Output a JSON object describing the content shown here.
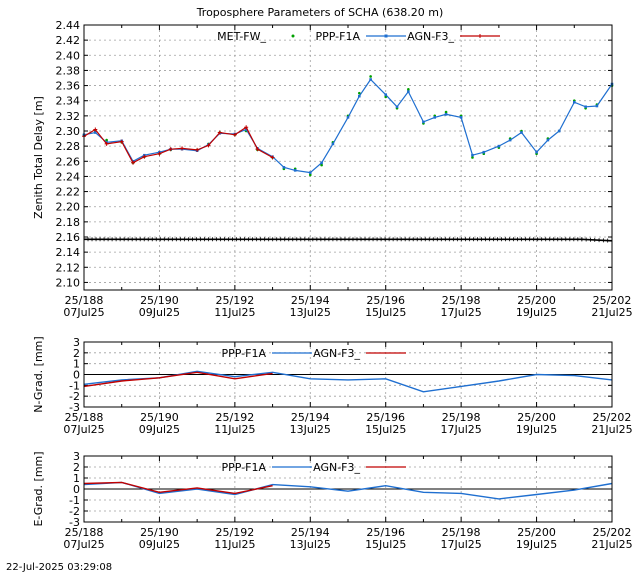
{
  "chart_data": [
    {
      "type": "line",
      "title": "Troposphere Parameters of SCHA (638.20 m)",
      "xlabel": "",
      "ylabel": "Zenith Total Delay [m]",
      "x_ticks": [
        "25/188\n07Jul25",
        "25/190\n09Jul25",
        "25/192\n11Jul25",
        "25/194\n13Jul25",
        "25/196\n15Jul25",
        "25/198\n17Jul25",
        "25/200\n19Jul25",
        "25/202\n21Jul25"
      ],
      "xlim": [
        188,
        202
      ],
      "ylim": [
        2.09,
        2.44
      ],
      "y_ticks": [
        "2.10",
        "2.12",
        "2.14",
        "2.16",
        "2.18",
        "2.20",
        "2.22",
        "2.24",
        "2.26",
        "2.28",
        "2.30",
        "2.32",
        "2.34",
        "2.36",
        "2.38",
        "2.40",
        "2.42",
        "2.44"
      ],
      "grid": true,
      "legend": "top",
      "series": [
        {
          "name": "MET-FW_",
          "color": "#00a000",
          "style": "dots",
          "x": [
            188.0,
            188.3,
            188.6,
            189.0,
            189.3,
            189.6,
            190.0,
            190.3,
            190.6,
            191.0,
            191.3,
            191.6,
            192.0,
            192.3,
            192.6,
            193.0,
            193.3,
            193.6,
            194.0,
            194.3,
            194.6,
            195.0,
            195.3,
            195.6,
            196.0,
            196.3,
            196.6,
            197.0,
            197.3,
            197.6,
            198.0,
            198.3,
            198.6,
            199.0,
            199.3,
            199.6,
            200.0,
            200.3,
            200.6,
            201.0,
            201.3,
            201.6,
            202.0
          ],
          "y": [
            2.295,
            2.3,
            2.288,
            2.285,
            2.258,
            2.266,
            2.27,
            2.275,
            2.276,
            2.275,
            2.283,
            2.298,
            2.295,
            2.3,
            2.275,
            2.265,
            2.25,
            2.25,
            2.242,
            2.255,
            2.285,
            2.32,
            2.35,
            2.372,
            2.345,
            2.33,
            2.355,
            2.31,
            2.32,
            2.325,
            2.32,
            2.265,
            2.27,
            2.278,
            2.29,
            2.3,
            2.27,
            2.29,
            2.3,
            2.34,
            2.33,
            2.335,
            2.36
          ]
        },
        {
          "name": "PPP-F1A",
          "color": "#1f6fd0",
          "style": "line-markers",
          "x": [
            188.0,
            188.3,
            188.6,
            189.0,
            189.3,
            189.6,
            190.0,
            190.3,
            190.6,
            191.0,
            191.3,
            191.6,
            192.0,
            192.3,
            192.6,
            193.0,
            193.3,
            193.6,
            194.0,
            194.3,
            194.6,
            195.0,
            195.3,
            195.6,
            196.0,
            196.3,
            196.6,
            197.0,
            197.3,
            197.6,
            198.0,
            198.3,
            198.6,
            199.0,
            199.3,
            199.6,
            200.0,
            200.3,
            200.6,
            201.0,
            201.3,
            201.6,
            202.0
          ],
          "y": [
            2.295,
            2.298,
            2.285,
            2.287,
            2.26,
            2.268,
            2.272,
            2.276,
            2.276,
            2.274,
            2.282,
            2.297,
            2.296,
            2.302,
            2.277,
            2.266,
            2.252,
            2.248,
            2.245,
            2.258,
            2.283,
            2.318,
            2.346,
            2.368,
            2.348,
            2.332,
            2.352,
            2.312,
            2.318,
            2.322,
            2.318,
            2.268,
            2.272,
            2.28,
            2.288,
            2.298,
            2.272,
            2.288,
            2.3,
            2.338,
            2.332,
            2.333,
            2.362
          ]
        },
        {
          "name": "AGN-F3_",
          "color": "#c00000",
          "style": "line-plus",
          "x": [
            188.0,
            188.3,
            188.6,
            189.0,
            189.3,
            189.6,
            190.0,
            190.3,
            190.6,
            191.0,
            191.3,
            191.6,
            192.0,
            192.3,
            192.6,
            193.0
          ],
          "y": [
            2.293,
            2.302,
            2.283,
            2.286,
            2.258,
            2.266,
            2.27,
            2.276,
            2.277,
            2.275,
            2.281,
            2.298,
            2.295,
            2.305,
            2.276,
            2.265
          ]
        },
        {
          "name": "",
          "color": "#000000",
          "style": "plus-baseline",
          "x": [
            188,
            201.2,
            202
          ],
          "y": [
            2.157,
            2.157,
            2.155
          ]
        }
      ]
    },
    {
      "type": "line",
      "title": "",
      "xlabel": "",
      "ylabel": "N-Grad. [mm]",
      "xlim": [
        188,
        202
      ],
      "ylim": [
        -3,
        3
      ],
      "y_ticks": [
        "-3",
        "-2",
        "-1",
        "0",
        "1",
        "2",
        "3"
      ],
      "grid": true,
      "legend": "top",
      "series": [
        {
          "name": "PPP-F1A",
          "color": "#1f6fd0",
          "x": [
            188,
            189,
            190,
            191,
            192,
            193,
            194,
            195,
            196,
            197,
            198,
            199,
            200,
            201,
            202
          ],
          "y": [
            -0.9,
            -0.5,
            -0.3,
            0.3,
            -0.2,
            0.2,
            -0.4,
            -0.5,
            -0.4,
            -1.6,
            -1.1,
            -0.6,
            0.0,
            -0.1,
            -0.5
          ]
        },
        {
          "name": "AGN-F3_",
          "color": "#c00000",
          "x": [
            188,
            189,
            190,
            191,
            192,
            193
          ],
          "y": [
            -1.1,
            -0.6,
            -0.3,
            0.2,
            -0.4,
            0.1
          ]
        }
      ]
    },
    {
      "type": "line",
      "title": "",
      "xlabel": "",
      "ylabel": "E-Grad. [mm]",
      "xlim": [
        188,
        202
      ],
      "ylim": [
        -3,
        3
      ],
      "y_ticks": [
        "-3",
        "-2",
        "-1",
        "0",
        "1",
        "2",
        "3"
      ],
      "grid": true,
      "legend": "top",
      "series": [
        {
          "name": "PPP-F1A",
          "color": "#1f6fd0",
          "x": [
            188,
            189,
            190,
            191,
            192,
            193,
            194,
            195,
            196,
            197,
            198,
            199,
            200,
            201,
            202
          ],
          "y": [
            0.4,
            0.6,
            -0.4,
            0.0,
            -0.5,
            0.4,
            0.2,
            -0.2,
            0.3,
            -0.3,
            -0.4,
            -0.9,
            -0.5,
            -0.1,
            0.5
          ]
        },
        {
          "name": "AGN-F3_",
          "color": "#c00000",
          "x": [
            188,
            189,
            190,
            191,
            192,
            193
          ],
          "y": [
            0.5,
            0.6,
            -0.3,
            0.1,
            -0.4,
            0.3
          ]
        }
      ]
    }
  ],
  "footer": "22-Jul-2025 03:29:08"
}
